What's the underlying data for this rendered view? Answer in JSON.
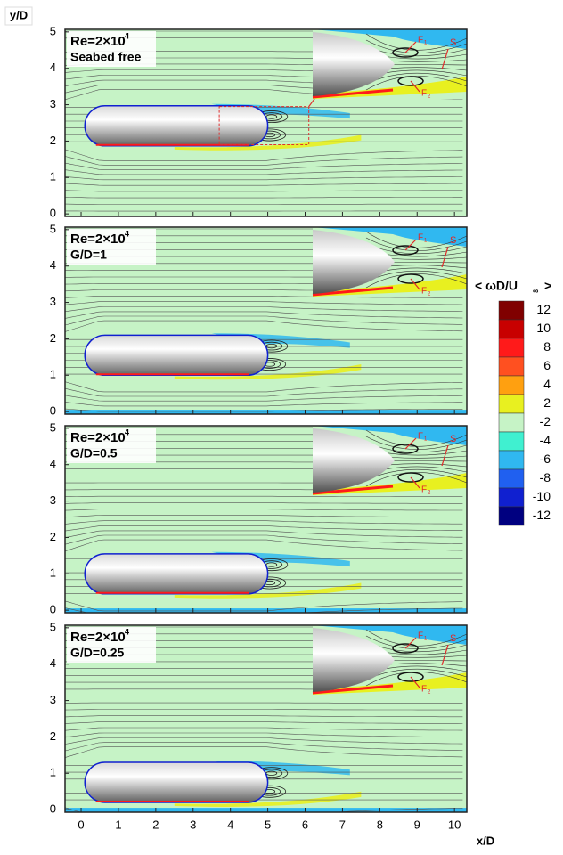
{
  "axes": {
    "xlabel": "x/D",
    "ylabel": "y/D"
  },
  "chart_data": [
    {
      "type": "contour",
      "label_base": "Re=2×10",
      "label_exp": "4",
      "case": "Seabed free",
      "xlim": [
        -0.43,
        10.33
      ],
      "ylim": [
        -0.07,
        5.07
      ],
      "xticks": [
        0,
        1,
        2,
        3,
        4,
        5,
        6,
        7,
        8,
        9,
        10
      ],
      "yticks": [
        0,
        1,
        2,
        3,
        4,
        5
      ],
      "inset_labels": [
        "F",
        "1",
        "F",
        "2",
        "S"
      ]
    },
    {
      "type": "contour",
      "label_base": "Re=2×10",
      "label_exp": "4",
      "case": "G/D=1",
      "xlim": [
        -0.43,
        10.33
      ],
      "ylim": [
        -0.07,
        5.07
      ],
      "xticks": [
        0,
        1,
        2,
        3,
        4,
        5,
        6,
        7,
        8,
        9,
        10
      ],
      "yticks": [
        0,
        1,
        2,
        3,
        4,
        5
      ],
      "inset_labels": [
        "F",
        "1",
        "F",
        "2",
        "S"
      ]
    },
    {
      "type": "contour",
      "label_base": "Re=2×10",
      "label_exp": "4",
      "case": "G/D=0.5",
      "xlim": [
        -0.43,
        10.33
      ],
      "ylim": [
        -0.07,
        5.07
      ],
      "xticks": [
        0,
        1,
        2,
        3,
        4,
        5,
        6,
        7,
        8,
        9,
        10
      ],
      "yticks": [
        0,
        1,
        2,
        3,
        4,
        5
      ],
      "inset_labels": [
        "F",
        "1",
        "F",
        "2",
        "S"
      ]
    },
    {
      "type": "contour",
      "label_base": "Re=2×10",
      "label_exp": "4",
      "case": "G/D=0.25",
      "xlim": [
        -0.43,
        10.33
      ],
      "ylim": [
        -0.07,
        5.07
      ],
      "xticks": [
        0,
        1,
        2,
        3,
        4,
        5,
        6,
        7,
        8,
        9,
        10
      ],
      "yticks": [
        0,
        1,
        2,
        3,
        4,
        5
      ],
      "inset_labels": [
        "F",
        "1",
        "F",
        "2",
        "S"
      ]
    }
  ],
  "colorbar": {
    "title_left": "< ωD/U",
    "title_sub": "∞",
    "title_right": ">",
    "levels": [
      12,
      10,
      8,
      6,
      4,
      2,
      -2,
      -4,
      -6,
      -8,
      -10,
      -12
    ],
    "colors": [
      "#800000",
      "#c80000",
      "#ff1a1a",
      "#ff5020",
      "#ffa010",
      "#e8f020",
      "#c6f3c6",
      "#40f0d0",
      "#30b8f0",
      "#2060f0",
      "#1020d0",
      "#000080"
    ]
  }
}
